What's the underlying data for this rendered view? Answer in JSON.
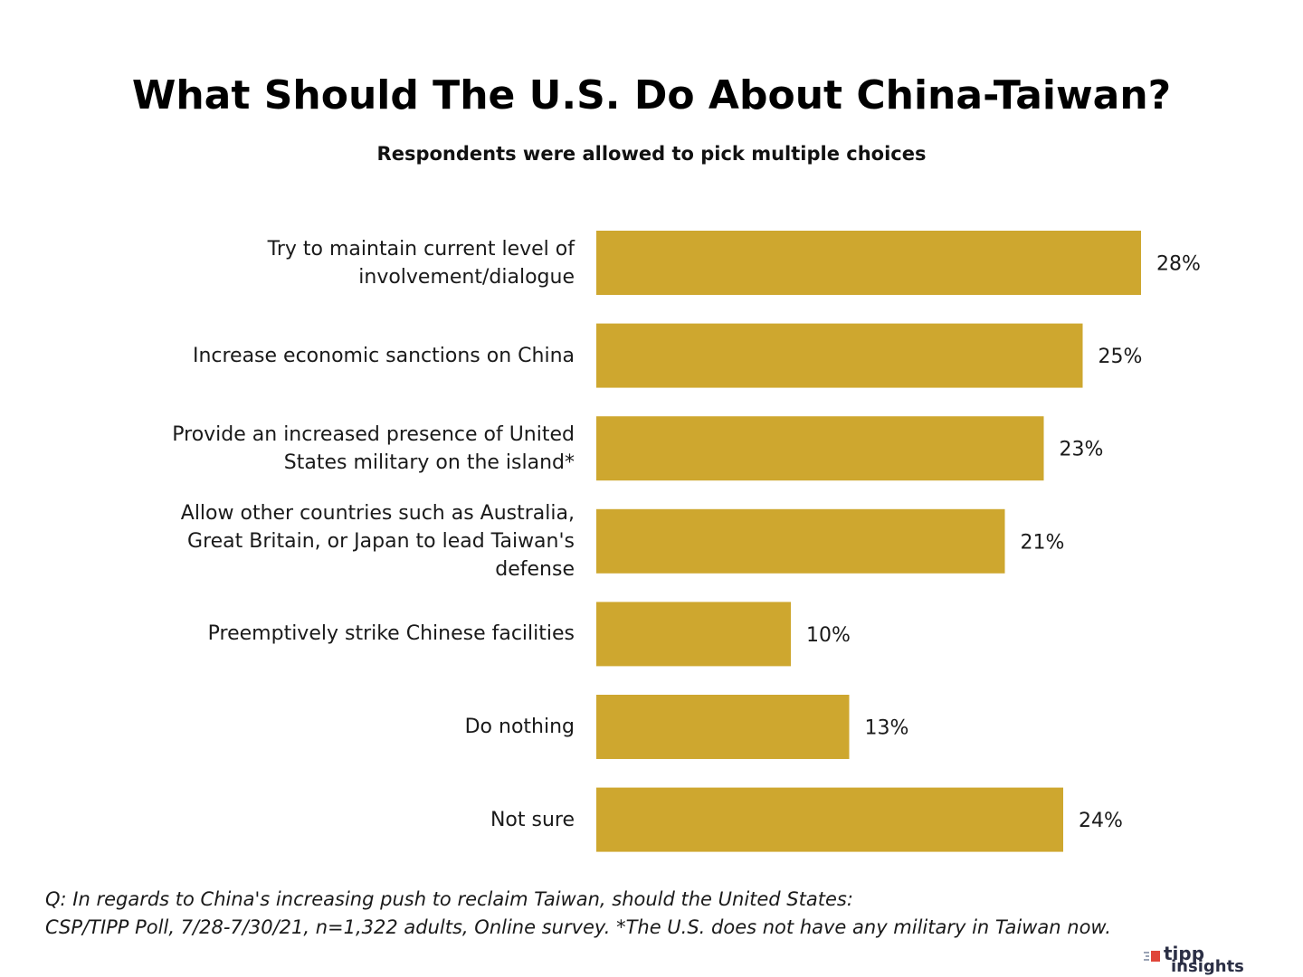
{
  "chart_data": {
    "type": "bar",
    "orientation": "horizontal",
    "title": "What Should The U.S. Do About China-Taiwan?",
    "subtitle": "Respondents were allowed to pick multiple choices",
    "categories": [
      "Try to maintain current level of \ninvolvement/dialogue",
      "Increase economic sanctions on China",
      "Provide an increased presence of United \nStates military on the island*",
      "Allow other countries such as Australia, \nGreat Britain, or Japan to lead Taiwan's \ndefense",
      "Preemptively strike Chinese facilities",
      "Do nothing",
      "Not sure"
    ],
    "values": [
      28,
      25,
      23,
      21,
      10,
      13,
      24
    ],
    "data_labels": [
      "28%",
      "25%",
      "23%",
      "21%",
      "10%",
      "13%",
      "24%"
    ],
    "value_unit": "%",
    "xlim": [
      0,
      28
    ],
    "bar_color": "#cea72f",
    "grid": false,
    "legend": "none"
  },
  "footnotes": {
    "question": "Q:  In regards to China's increasing push to reclaim Taiwan, should the United States:",
    "source": "CSP/TIPP Poll, 7/28-7/30/21, n=1,322 adults, Online survey. *The U.S. does not have any military in Taiwan now."
  },
  "logo": {
    "line1": "tipp",
    "line2": "insights",
    "icon": "tipp-logo-flag-icon",
    "accent_color": "#e0463a",
    "text_color": "#2b2f45"
  }
}
